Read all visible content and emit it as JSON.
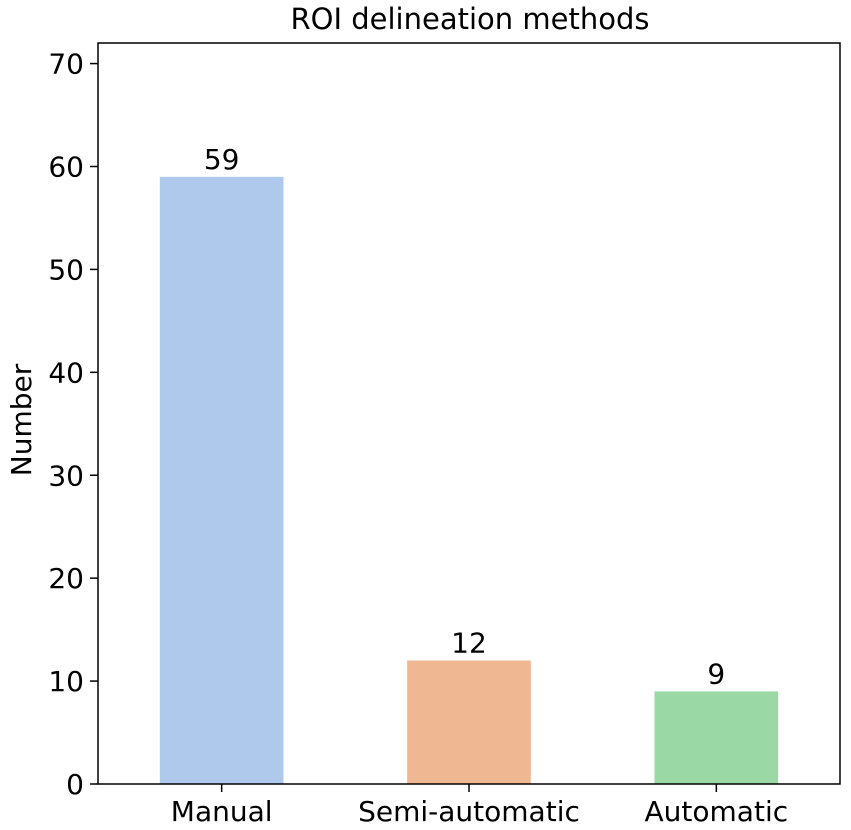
{
  "chart_data": {
    "type": "bar",
    "title": "ROI delineation methods",
    "xlabel": "",
    "ylabel": "Number",
    "categories": [
      "Manual",
      "Semi-automatic",
      "Automatic"
    ],
    "values": [
      59,
      12,
      9
    ],
    "data_labels": [
      "59",
      "12",
      "9"
    ],
    "colors": [
      "#aec9eb",
      "#f0b793",
      "#9ad9a5"
    ],
    "ylim": [
      0,
      72
    ],
    "yticks": [
      0,
      10,
      20,
      30,
      40,
      50,
      60,
      70
    ],
    "grid": false,
    "legend": "none"
  }
}
